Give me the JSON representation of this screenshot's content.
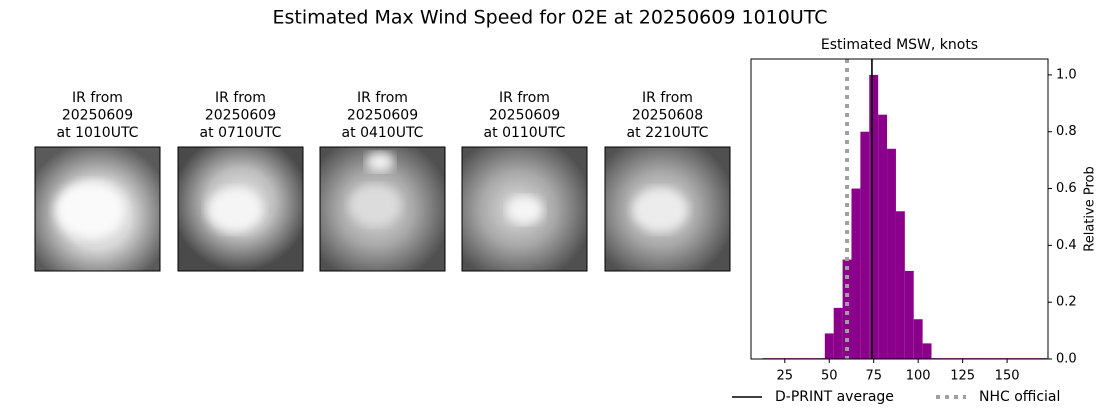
{
  "title": "Estimated Max Wind Speed for 02E at 20250609 1010UTC",
  "images": [
    {
      "lines": [
        "IR from",
        "20250609",
        "at 1010UTC"
      ]
    },
    {
      "lines": [
        "IR from",
        "20250609",
        "at 0710UTC"
      ]
    },
    {
      "lines": [
        "IR from",
        "20250609",
        "at 0410UTC"
      ]
    },
    {
      "lines": [
        "IR from",
        "20250609",
        "at 0110UTC"
      ]
    },
    {
      "lines": [
        "IR from",
        "20250608",
        "at 2210UTC"
      ]
    }
  ],
  "chart_data": {
    "type": "histogram",
    "title": "Estimated MSW, knots",
    "y_label": "Relative Prob",
    "bins": [
      12.5,
      17.5,
      22.5,
      27.5,
      32.5,
      37.5,
      42.5,
      47.5,
      52.5,
      57.5,
      62.5,
      67.5,
      72.5,
      77.5,
      82.5,
      87.5,
      92.5,
      97.5,
      102.5,
      107.5,
      112.5,
      117.5,
      122.5,
      127.5,
      132.5,
      137.5,
      142.5,
      147.5,
      152.5,
      157.5,
      162.5,
      167.5,
      172.5
    ],
    "values": [
      0.003,
      0.003,
      0.003,
      0.003,
      0.003,
      0.003,
      0.003,
      0.09,
      0.18,
      0.35,
      0.6,
      0.8,
      1.0,
      0.86,
      0.74,
      0.52,
      0.31,
      0.14,
      0.055,
      0.003,
      0.003,
      0.003,
      0.003,
      0.003,
      0.003,
      0.003,
      0.003,
      0.003,
      0.003,
      0.003,
      0.003,
      0.003
    ],
    "color": "#8b008b",
    "xlim": [
      6,
      173
    ],
    "xticks": [
      25,
      50,
      75,
      100,
      125,
      150
    ],
    "ylim": [
      0,
      1.056
    ],
    "yticks": [
      {
        "value": 0,
        "label": "0.0"
      },
      {
        "value": 0.2,
        "label": "0.2"
      },
      {
        "value": 0.4,
        "label": "0.4"
      },
      {
        "value": 0.6,
        "label": "0.6"
      },
      {
        "value": 0.8,
        "label": "0.8"
      },
      {
        "value": 1.0,
        "label": "1.0"
      }
    ],
    "reference_lines": [
      {
        "name": "D-PRINT average",
        "value": 74,
        "color": "#000000",
        "style": "solid"
      },
      {
        "name": "NHC official",
        "value": 60,
        "color": "#a0a0a0",
        "style": "dotted"
      }
    ]
  }
}
